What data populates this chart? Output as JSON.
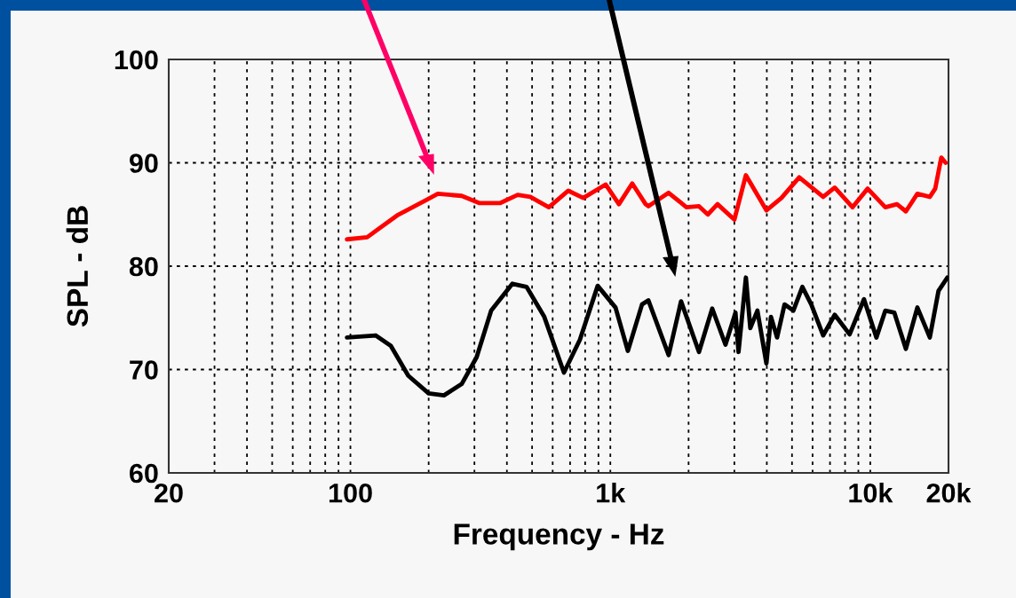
{
  "chart_data": {
    "type": "line",
    "xlabel": "Frequency - Hz",
    "ylabel": "SPL - dB",
    "log": "x",
    "xlim": [
      20,
      20000
    ],
    "xticks": [
      20,
      100,
      {
        "value": 1000,
        "label": "1k"
      },
      {
        "value": 10000,
        "label": "10k"
      },
      {
        "value": 20000,
        "label": "20k"
      }
    ],
    "ylim": [
      60,
      100
    ],
    "yticks": [
      60,
      70,
      80,
      90,
      100
    ],
    "grid": true,
    "line_style": "solid",
    "series": [
      {
        "color": "#ff0000",
        "x": [
          97,
          116,
          151,
          196,
          217,
          268,
          314,
          376,
          440,
          492,
          580,
          689,
          787,
          959,
          1079,
          1214,
          1367,
          1400,
          1676,
          1963,
          2193,
          2372,
          2584,
          3000,
          3323,
          3985,
          4552,
          5330,
          6590,
          7300,
          8550,
          9770,
          11430,
          12670,
          13710,
          15180,
          16950,
          17780,
          18760,
          19500
        ],
        "values": [
          82.6,
          82.8,
          84.9,
          86.4,
          87.0,
          86.8,
          86.1,
          86.1,
          86.9,
          86.7,
          85.7,
          87.3,
          86.6,
          87.9,
          86.0,
          88.0,
          86.0,
          85.8,
          87.1,
          85.7,
          85.8,
          85.0,
          86.0,
          84.5,
          88.8,
          85.4,
          86.6,
          88.6,
          86.7,
          87.6,
          85.7,
          87.5,
          85.7,
          86.0,
          85.3,
          87.0,
          86.7,
          87.5,
          90.5,
          90.0
        ]
      },
      {
        "color": "#000000",
        "x": [
          97,
          125,
          143,
          167,
          200,
          229,
          268,
          306,
          348,
          420,
          476,
          557,
          663,
          764,
          894,
          1047,
          1168,
          1324,
          1400,
          1676,
          1871,
          2193,
          2466,
          2773,
          3030,
          3113,
          3323,
          3455,
          3680,
          3985,
          4150,
          4380,
          4680,
          5060,
          5480,
          5930,
          6590,
          7300,
          8330,
          9460,
          10560,
          11430,
          12380,
          13710,
          15180,
          16950,
          18300,
          19800
        ],
        "values": [
          73.1,
          73.3,
          72.3,
          69.4,
          67.7,
          67.5,
          68.6,
          71.2,
          75.7,
          78.3,
          78.0,
          75.1,
          69.7,
          72.9,
          78.1,
          76.0,
          71.8,
          76.3,
          76.7,
          71.4,
          76.6,
          71.7,
          75.9,
          72.4,
          75.5,
          71.7,
          78.9,
          74.0,
          75.7,
          70.6,
          75.1,
          73.1,
          76.3,
          75.7,
          78.0,
          76.3,
          73.3,
          75.3,
          73.4,
          76.8,
          73.1,
          75.7,
          75.5,
          72.0,
          76.0,
          73.1,
          77.6,
          78.9
        ]
      }
    ]
  }
}
